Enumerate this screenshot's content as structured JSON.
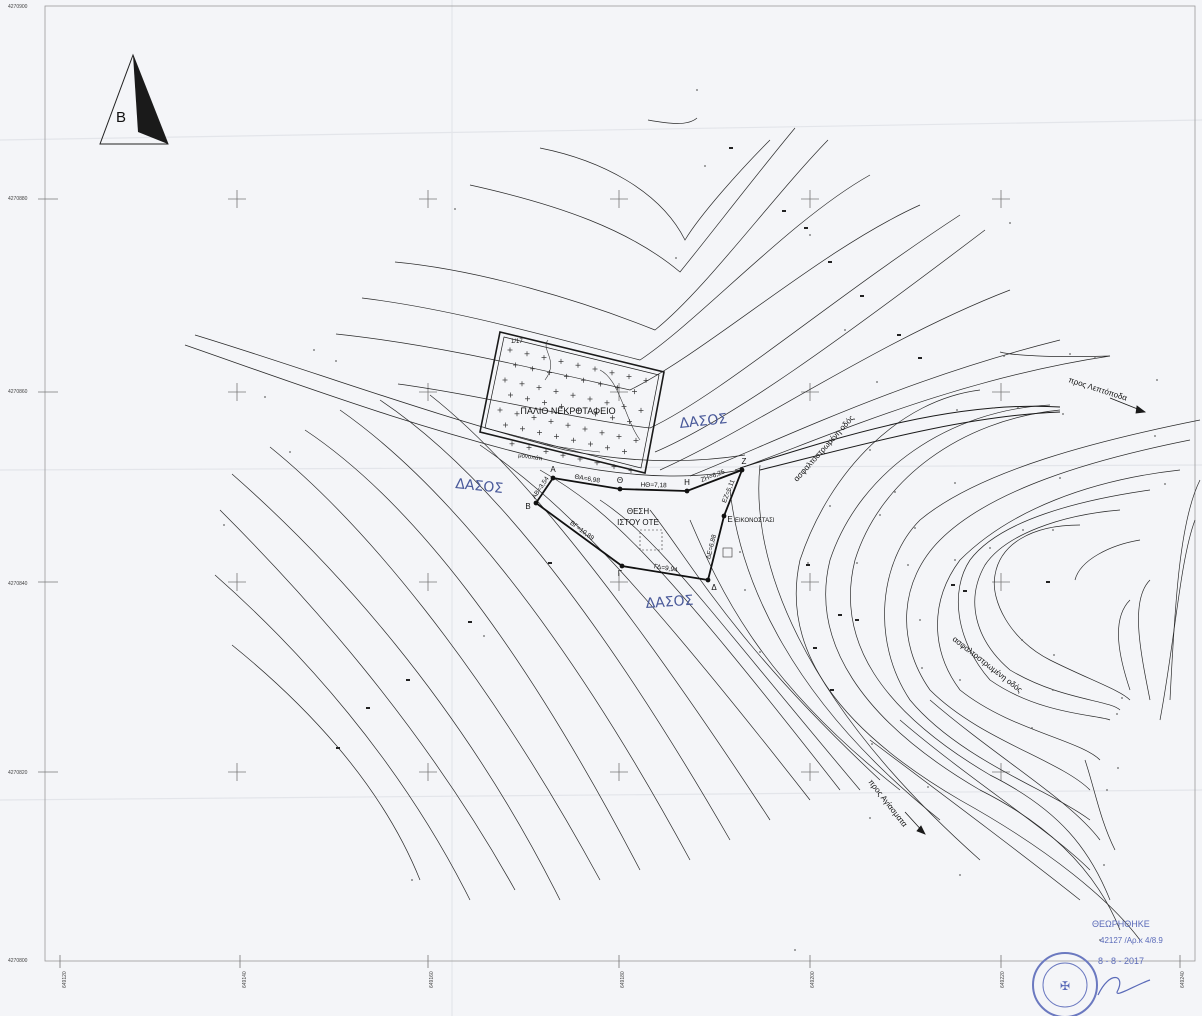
{
  "north_arrow": {
    "letter": "Β"
  },
  "labels": {
    "cemetery": "ΠΑΛΙΟ ΝΕΚΡΟΤΑΦΕΙΟ",
    "cemetery_code": "1/17",
    "site_line1": "ΘΕΣΗ",
    "site_line2": "ΙΣΤΟΥ ΟΤΕ",
    "shrine": "ΕΙΚΟΝΟΣΤΑΣΙ",
    "footpath": "μονοπάτι",
    "road_north": "ασφαλτοστρωμένη οδός",
    "road_south": "ασφαλτοστρωμένη οδός",
    "to_leptopoda": "προς Λεπτόποδα",
    "to_agiasmata": "προς Αγίασματα",
    "forest_1": "ΔΑΣΟΣ",
    "forest_2": "ΔΑΣΟΣ",
    "forest_3": "ΔΑΣΟΣ"
  },
  "vertices": [
    {
      "id": "A",
      "label": "Α"
    },
    {
      "id": "B",
      "label": "Β"
    },
    {
      "id": "G",
      "label": "Γ"
    },
    {
      "id": "D",
      "label": "Δ"
    },
    {
      "id": "E",
      "label": "Ε"
    },
    {
      "id": "Z",
      "label": "Ζ"
    },
    {
      "id": "H",
      "label": "Η"
    },
    {
      "id": "TH",
      "label": "Θ"
    }
  ],
  "segments": [
    {
      "name": "seg-ab",
      "label": "ΑΒ=3,54"
    },
    {
      "name": "seg-bg",
      "label": "ΒΓ=10,89"
    },
    {
      "name": "seg-gd",
      "label": "ΓΔ=9,94"
    },
    {
      "name": "seg-de",
      "label": "ΔΕ=6,88"
    },
    {
      "name": "seg-ez",
      "label": "ΕΖ=5,11"
    },
    {
      "name": "seg-zh",
      "label": "ΖΗ=6,25"
    },
    {
      "name": "seg-hth",
      "label": "ΗΘ=7,18"
    },
    {
      "name": "seg-tha",
      "label": "ΘΑ=6,98"
    }
  ],
  "grid": {
    "y_labels": [
      "4270900",
      "4270880",
      "4270860",
      "4270840",
      "4270820",
      "4270800"
    ],
    "x_labels": [
      "649120",
      "649140",
      "649160",
      "649180",
      "649200",
      "649220",
      "649240"
    ]
  },
  "stamp": {
    "title": "ΘΕΩΡΗΘΗΚΕ",
    "ref": "42127 /Αρ.κ 4/8.9",
    "date": "8 - 8 - 2017"
  },
  "colors": {
    "ink": "#1e1e1e",
    "hand": "#4a5a9a",
    "stamp": "#5a6ab8",
    "paper": "#f4f5f8"
  }
}
